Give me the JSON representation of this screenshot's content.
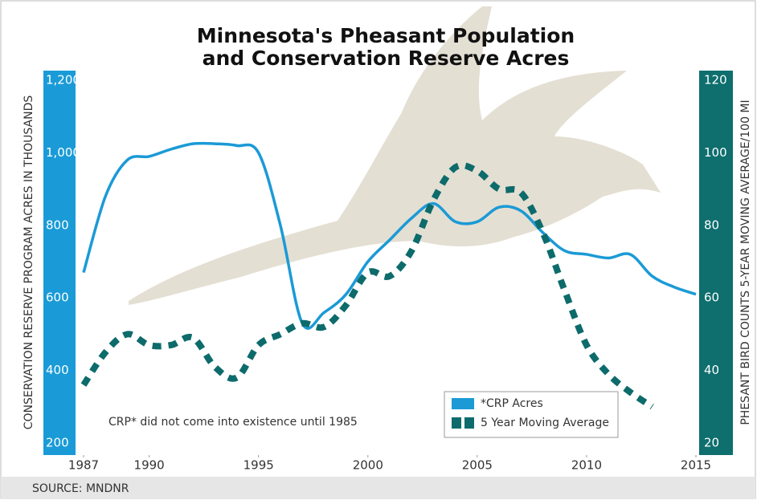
{
  "chart_data": {
    "type": "line",
    "title_lines": [
      "Minnesota's Pheasant Population",
      "and Conservation Reserve Acres"
    ],
    "y_label": "CONSERVATION RESERVE PROGRAM ACRES IN THOUSANDS",
    "y2_label": "PHESANT BIRD COUNTS 5-YEAR MOVING AVERAGE/100 MI",
    "annotation": "CRP* did not come into existence until 1985",
    "source": "SOURCE: MNDNR",
    "x": [
      1987,
      1988,
      1989,
      1990,
      1991,
      1992,
      1993,
      1994,
      1995,
      1996,
      1997,
      1998,
      1999,
      2000,
      2001,
      2002,
      2003,
      2004,
      2005,
      2006,
      2007,
      2008,
      2009,
      2010,
      2011,
      2012,
      2013,
      2014,
      2015
    ],
    "xlim": [
      1987,
      2015
    ],
    "xticks": [
      1987,
      1990,
      1995,
      2000,
      2005,
      2010,
      2015
    ],
    "ylim": [
      200,
      1200
    ],
    "yticks": [
      200,
      400,
      600,
      800,
      {
        "value": 1000,
        "label": "1,000"
      },
      {
        "value": 1200,
        "label": "1,200"
      }
    ],
    "y2lim": [
      20,
      120
    ],
    "y2ticks": [
      20,
      40,
      60,
      80,
      100,
      120
    ],
    "left_axis_color": "#1a9bd7",
    "right_axis_color": "#0f6e6e",
    "series": [
      {
        "name": "*CRP Acres",
        "color": "#1b9ad6",
        "style": "solid",
        "values": [
          670,
          880,
          980,
          990,
          1010,
          1025,
          1025,
          1020,
          1000,
          800,
          530,
          560,
          610,
          700,
          760,
          820,
          860,
          810,
          810,
          850,
          840,
          780,
          730,
          720,
          710,
          720,
          660,
          630,
          610
        ]
      },
      {
        "name": "5 Year Moving Average",
        "color": "#0d6b6b",
        "style": "dotted",
        "axis": "y2",
        "values": [
          36,
          45,
          50,
          47,
          47,
          49,
          41,
          38,
          47,
          50,
          53,
          52,
          58,
          67,
          66,
          73,
          87,
          96,
          95,
          90,
          89,
          78,
          62,
          47,
          39,
          34,
          30,
          null,
          null
        ]
      }
    ]
  }
}
